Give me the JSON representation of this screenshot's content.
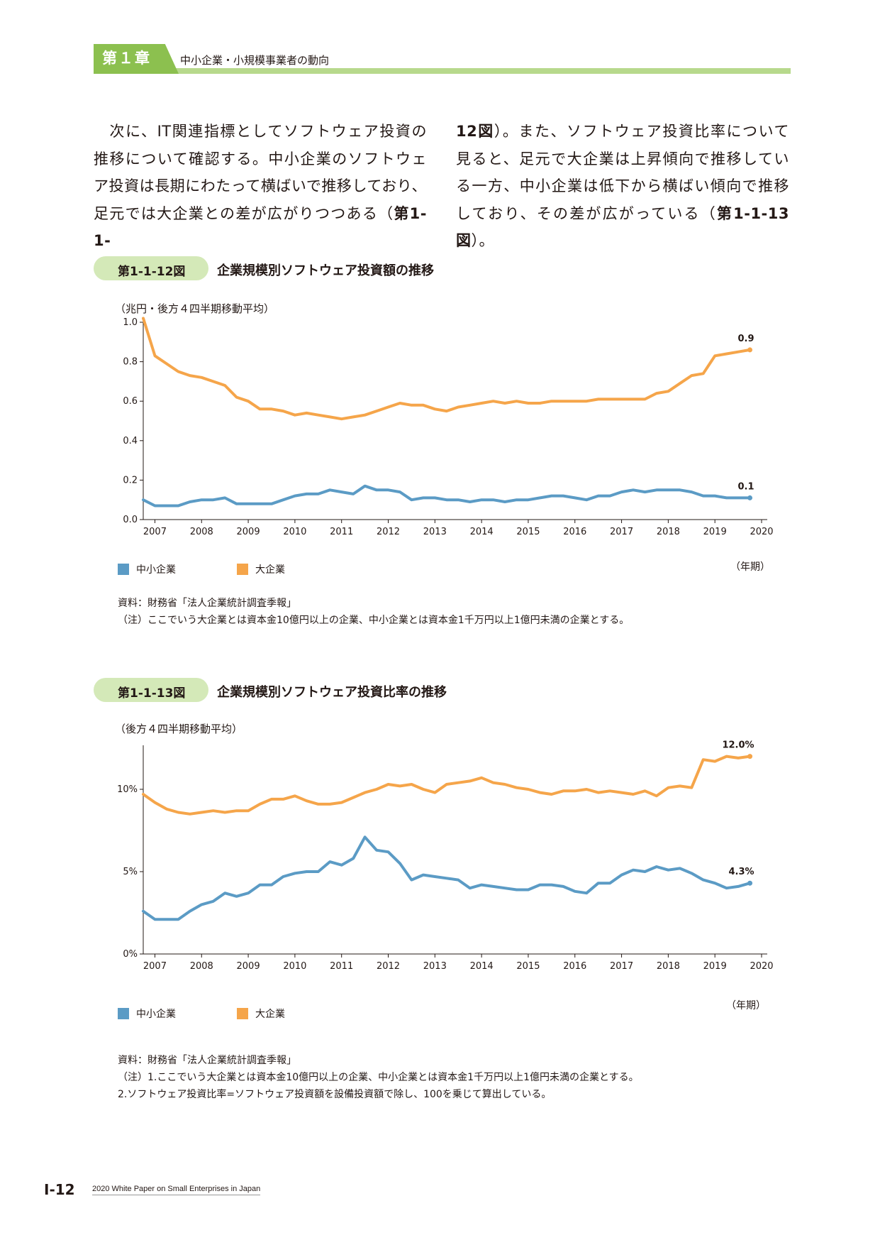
{
  "header": {
    "chapter_label": "第１章",
    "chapter_title": "中小企業・小規模事業者の動向"
  },
  "body_text": {
    "left_plain": "　次に、IT関連指標としてソフトウェア投資の推移について確認する。中小企業のソフトウェア投資は長期にわたって横ばいで推移しており、足元では大企業との差が広がりつつある（",
    "left_bold": "第1-1-",
    "right_bold": "12図",
    "right_plain": "）。また、ソフトウェア投資比率について見ると、足元で大企業は上昇傾向で推移している一方、中小企業は低下から横ばい傾向で推移しており、その差が広がっている（",
    "right_bold2": "第1-1-13図",
    "right_end": "）。"
  },
  "figure1": {
    "number": "第1-1-12図",
    "title": "企業規模別ソフトウェア投資額の推移",
    "unit_note": "（兆円・後方４四半期移動平均）",
    "period_label": "（年期）",
    "legend": [
      "中小企業",
      "大企業"
    ],
    "end_labels": [
      "0.9",
      "0.1"
    ],
    "source": "資料：財務省「法人企業統計調査季報」",
    "note": "（注）ここでいう大企業とは資本金10億円以上の企業、中小企業とは資本金1千万円以上1億円未満の企業とする。"
  },
  "figure2": {
    "number": "第1-1-13図",
    "title": "企業規模別ソフトウェア投資比率の推移",
    "unit_note": "（後方４四半期移動平均）",
    "period_label": "（年期）",
    "legend": [
      "中小企業",
      "大企業"
    ],
    "end_labels": [
      "12.0%",
      "4.3%"
    ],
    "source": "資料：財務省「法人企業統計調査季報」",
    "note1": "（注）1.ここでいう大企業とは資本金10億円以上の企業、中小企業とは資本金1千万円以上1億円未満の企業とする。",
    "note2": "2.ソフトウェア投資比率=ソフトウェア投資額を設備投資額で除し、100を乗じて算出している。"
  },
  "footer": {
    "page": "Ⅰ-12",
    "publication": "2020 White Paper on Small Enterprises in Japan"
  },
  "chart_data": [
    {
      "type": "line",
      "title": "企業規模別ソフトウェア投資額の推移",
      "ylabel": "（兆円・後方４四半期移動平均）",
      "xlabel": "（年期）",
      "ylim": [
        0,
        1.0
      ],
      "yticks": [
        "0.0",
        "0.2",
        "0.4",
        "0.6",
        "0.8",
        "1.0"
      ],
      "xticks": [
        "2007",
        "2008",
        "2009",
        "2010",
        "2011",
        "2012",
        "2013",
        "2014",
        "2015",
        "2016",
        "2017",
        "2018",
        "2019",
        "2020"
      ],
      "x_start": 2006.75,
      "x_step": 0.25,
      "series": [
        {
          "name": "中小企業",
          "color": "#5b9bc5",
          "end_label": "0.1",
          "values": [
            0.1,
            0.07,
            0.07,
            0.07,
            0.09,
            0.1,
            0.1,
            0.11,
            0.08,
            0.08,
            0.08,
            0.08,
            0.1,
            0.12,
            0.13,
            0.13,
            0.15,
            0.14,
            0.13,
            0.17,
            0.15,
            0.15,
            0.14,
            0.1,
            0.11,
            0.11,
            0.1,
            0.1,
            0.09,
            0.1,
            0.1,
            0.09,
            0.1,
            0.1,
            0.11,
            0.12,
            0.12,
            0.11,
            0.1,
            0.12,
            0.12,
            0.14,
            0.15,
            0.14,
            0.15,
            0.15,
            0.15,
            0.14,
            0.12,
            0.12,
            0.11,
            0.11,
            0.11
          ]
        },
        {
          "name": "大企業",
          "color": "#f5a54a",
          "end_label": "0.9",
          "values": [
            1.02,
            0.83,
            0.79,
            0.75,
            0.73,
            0.72,
            0.7,
            0.68,
            0.62,
            0.6,
            0.56,
            0.56,
            0.55,
            0.53,
            0.54,
            0.53,
            0.52,
            0.51,
            0.52,
            0.53,
            0.55,
            0.57,
            0.59,
            0.58,
            0.58,
            0.56,
            0.55,
            0.57,
            0.58,
            0.59,
            0.6,
            0.59,
            0.6,
            0.59,
            0.59,
            0.6,
            0.6,
            0.6,
            0.6,
            0.61,
            0.61,
            0.61,
            0.61,
            0.61,
            0.64,
            0.65,
            0.69,
            0.73,
            0.74,
            0.83,
            0.84,
            0.85,
            0.86
          ]
        }
      ]
    },
    {
      "type": "line",
      "title": "企業規模別ソフトウェア投資比率の推移",
      "ylabel": "（後方４四半期移動平均）",
      "xlabel": "（年期）",
      "ylim": [
        0,
        12.5
      ],
      "yticks": [
        "0%",
        "5%",
        "10%"
      ],
      "xticks": [
        "2007",
        "2008",
        "2009",
        "2010",
        "2011",
        "2012",
        "2013",
        "2014",
        "2015",
        "2016",
        "2017",
        "2018",
        "2019",
        "2020"
      ],
      "x_start": 2006.75,
      "x_step": 0.25,
      "series": [
        {
          "name": "中小企業",
          "color": "#5b9bc5",
          "end_label": "4.3%",
          "values": [
            2.6,
            2.1,
            2.1,
            2.1,
            2.6,
            3.0,
            3.2,
            3.7,
            3.5,
            3.7,
            4.2,
            4.2,
            4.7,
            4.9,
            5.0,
            5.0,
            5.6,
            5.4,
            5.8,
            7.1,
            6.3,
            6.2,
            5.5,
            4.5,
            4.8,
            4.7,
            4.6,
            4.5,
            4.0,
            4.2,
            4.1,
            4.0,
            3.9,
            3.9,
            4.2,
            4.2,
            4.1,
            3.8,
            3.7,
            4.3,
            4.3,
            4.8,
            5.1,
            5.0,
            5.3,
            5.1,
            5.2,
            4.9,
            4.5,
            4.3,
            4.0,
            4.1,
            4.3
          ]
        },
        {
          "name": "大企業",
          "color": "#f5a54a",
          "end_label": "12.0%",
          "values": [
            9.7,
            9.2,
            8.8,
            8.6,
            8.5,
            8.6,
            8.7,
            8.6,
            8.7,
            8.7,
            9.1,
            9.4,
            9.4,
            9.6,
            9.3,
            9.1,
            9.1,
            9.2,
            9.5,
            9.8,
            10.0,
            10.3,
            10.2,
            10.3,
            10.0,
            9.8,
            10.3,
            10.4,
            10.5,
            10.7,
            10.4,
            10.3,
            10.1,
            10.0,
            9.8,
            9.7,
            9.9,
            9.9,
            10.0,
            9.8,
            9.9,
            9.8,
            9.7,
            9.9,
            9.6,
            10.1,
            10.2,
            10.1,
            11.8,
            11.7,
            12.0,
            11.9,
            12.0
          ]
        }
      ]
    }
  ]
}
